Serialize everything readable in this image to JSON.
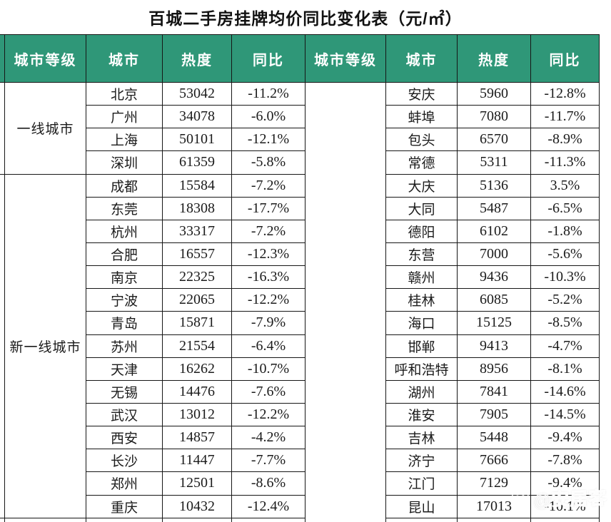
{
  "title": "百城二手房挂牌均价同比变化表（元/㎡）",
  "chart_data": {
    "type": "table",
    "title": "百城二手房挂牌均价同比变化表（元/㎡）",
    "columns": [
      "城市等级",
      "城市",
      "热度",
      "同比"
    ],
    "left_groups": [
      {
        "tier": "一线城市",
        "rows": [
          [
            "北京",
            53042,
            "-11.2%"
          ],
          [
            "广州",
            34078,
            "-6.0%"
          ],
          [
            "上海",
            50101,
            "-12.1%"
          ],
          [
            "深圳",
            61359,
            "-5.8%"
          ]
        ]
      },
      {
        "tier": "新一线城市",
        "rows": [
          [
            "成都",
            15584,
            "-7.2%"
          ],
          [
            "东莞",
            18308,
            "-17.7%"
          ],
          [
            "杭州",
            33317,
            "-7.2%"
          ],
          [
            "合肥",
            16557,
            "-12.3%"
          ],
          [
            "南京",
            22325,
            "-16.3%"
          ],
          [
            "宁波",
            22065,
            "-12.2%"
          ],
          [
            "青岛",
            15871,
            "-7.9%"
          ],
          [
            "苏州",
            21554,
            "-6.4%"
          ],
          [
            "天津",
            16262,
            "-10.7%"
          ],
          [
            "无锡",
            14476,
            "-7.6%"
          ],
          [
            "武汉",
            13012,
            "-12.2%"
          ],
          [
            "西安",
            14857,
            "-4.2%"
          ],
          [
            "长沙",
            11447,
            "-7.7%"
          ],
          [
            "郑州",
            12501,
            "-8.6%"
          ],
          [
            "重庆",
            10432,
            "-12.4%"
          ]
        ]
      }
    ],
    "right_groups": [
      {
        "tier": "",
        "rows": [
          [
            "安庆",
            5960,
            "-12.8%"
          ],
          [
            "蚌埠",
            7080,
            "-11.7%"
          ],
          [
            "包头",
            6570,
            "-8.9%"
          ],
          [
            "常德",
            5311,
            "-11.3%"
          ],
          [
            "大庆",
            5136,
            "3.5%"
          ],
          [
            "大同",
            5487,
            "-6.5%"
          ],
          [
            "德阳",
            6102,
            "-1.8%"
          ],
          [
            "东营",
            7000,
            "-5.6%"
          ],
          [
            "赣州",
            9436,
            "-10.3%"
          ],
          [
            "桂林",
            6085,
            "-5.2%"
          ],
          [
            "海口",
            15125,
            "-8.5%"
          ],
          [
            "邯郸",
            9413,
            "-4.7%"
          ],
          [
            "呼和浩特",
            8956,
            "-8.1%"
          ],
          [
            "湖州",
            7841,
            "-14.6%"
          ],
          [
            "淮安",
            7905,
            "-14.5%"
          ],
          [
            "吉林",
            5448,
            "-9.4%"
          ],
          [
            "济宁",
            7666,
            "-7.8%"
          ],
          [
            "江门",
            7129,
            "-9.4%"
          ],
          [
            "昆山",
            17013,
            "-10.1%"
          ]
        ]
      }
    ],
    "layout": {
      "legend": "none",
      "grid": "on",
      "halves": 2,
      "rows_per_half": 19
    }
  },
  "watermark": {
    "text": "@安居客",
    "icon": "paw-icon"
  },
  "colors": {
    "header_bg": "#2F9778",
    "header_text": "#FFFFFF",
    "border": "#161616",
    "cell_text": "#1B1B1B",
    "title_text": "#111111"
  }
}
